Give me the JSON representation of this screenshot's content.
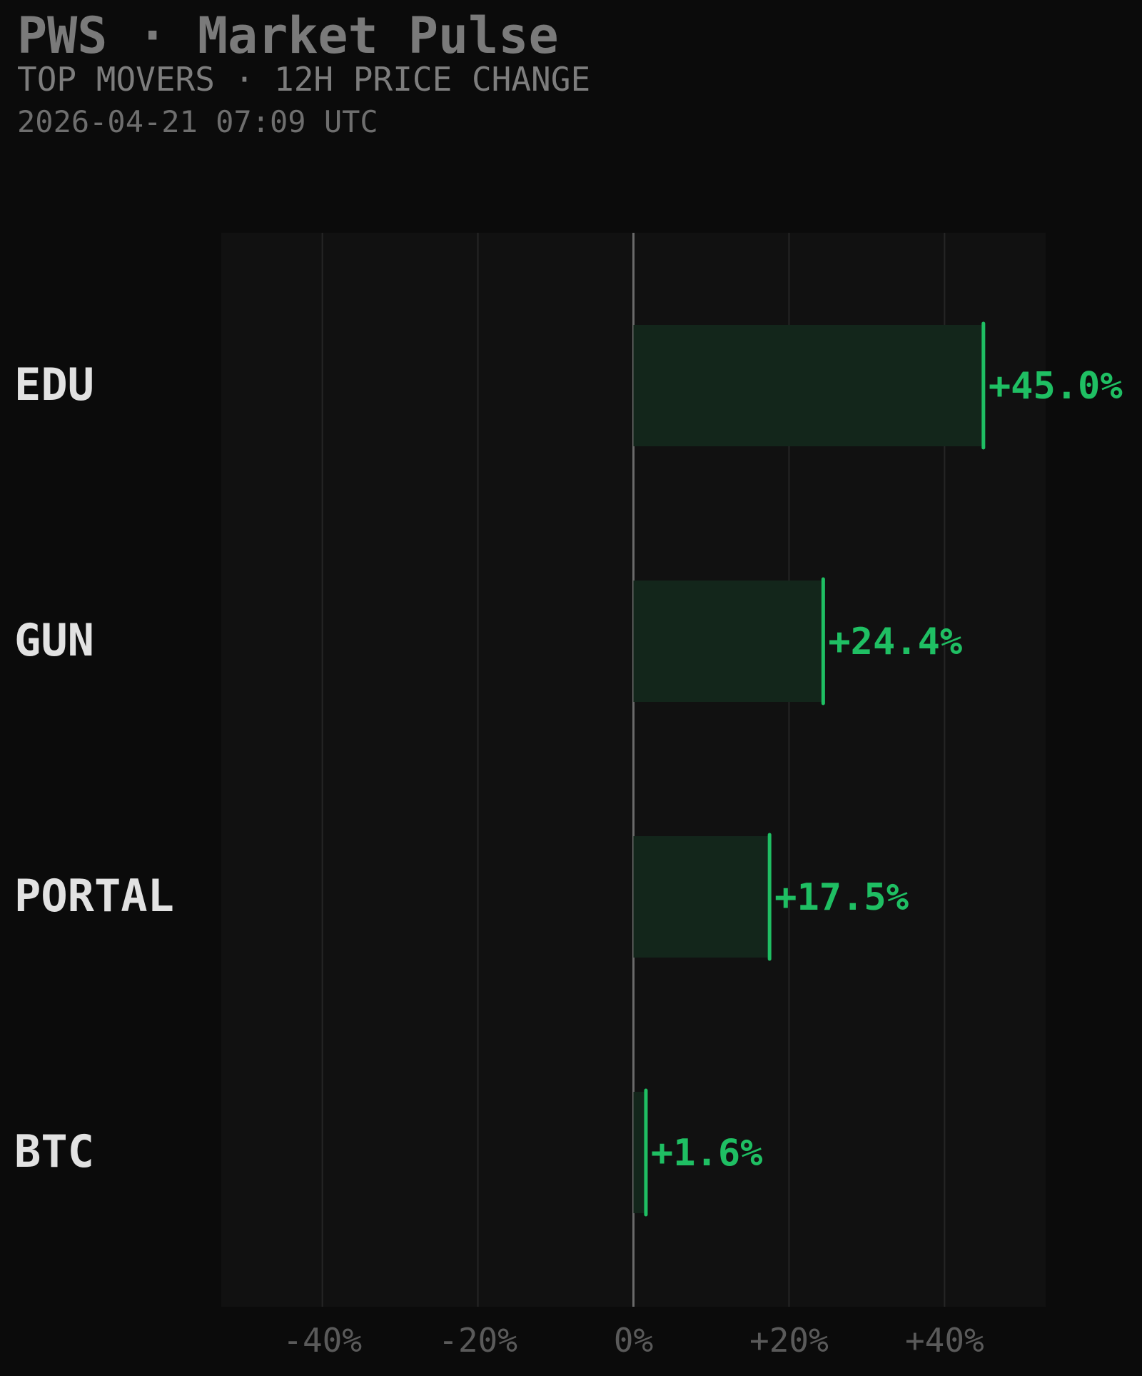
{
  "header": {
    "title": "PWS · Market Pulse",
    "subtitle": "TOP MOVERS · 12H PRICE CHANGE",
    "timestamp": "2026-04-21 07:09 UTC"
  },
  "colors": {
    "background": "#0b0b0b",
    "plot_background": "#111111",
    "positive": "#1fbf63",
    "bar_fill": "#13261b",
    "label": "#e2e2e2",
    "tick_label": "#5a5a5a",
    "gridline": "#262626",
    "zero_line": "#6a6a6a"
  },
  "chart_data": {
    "type": "bar",
    "orientation": "horizontal",
    "categories": [
      "EDU",
      "GUN",
      "PORTAL",
      "BTC"
    ],
    "values": [
      45.0,
      24.4,
      17.5,
      1.6
    ],
    "value_labels": [
      "+45.0%",
      "+24.4%",
      "+17.5%",
      "+1.6%"
    ],
    "xlim": [
      -53,
      53
    ],
    "xticks": [
      -40,
      -20,
      0,
      20,
      40
    ],
    "xtick_labels": [
      "-40%",
      "-20%",
      "0%",
      "+20%",
      "+40%"
    ],
    "grid": true,
    "xlabel": "",
    "ylabel": ""
  }
}
